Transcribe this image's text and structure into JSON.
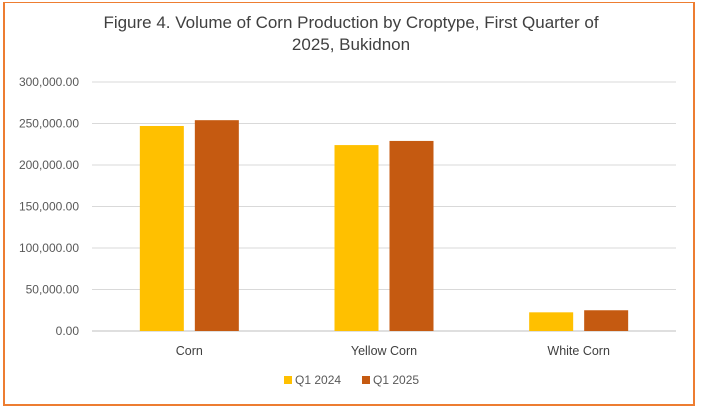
{
  "chart_data": {
    "type": "bar",
    "title_line1": "Figure 4. Volume of Corn Production by Croptype, First Quarter of",
    "title_line2": "2025, Bukidnon",
    "categories": [
      "Corn",
      "Yellow Corn",
      "White Corn"
    ],
    "series": [
      {
        "name": "Q1 2024",
        "color": "#FFC000",
        "values": [
          247000,
          224000,
          22500
        ]
      },
      {
        "name": "Q1 2025",
        "color": "#C55A11",
        "values": [
          254000,
          229000,
          25000
        ]
      }
    ],
    "ylim": [
      0,
      300000
    ],
    "yticks": [
      "0.00",
      "50,000.00",
      "100,000.00",
      "150,000.00",
      "200,000.00",
      "250,000.00",
      "300,000.00"
    ],
    "grid": true,
    "legend_position": "bottom"
  }
}
